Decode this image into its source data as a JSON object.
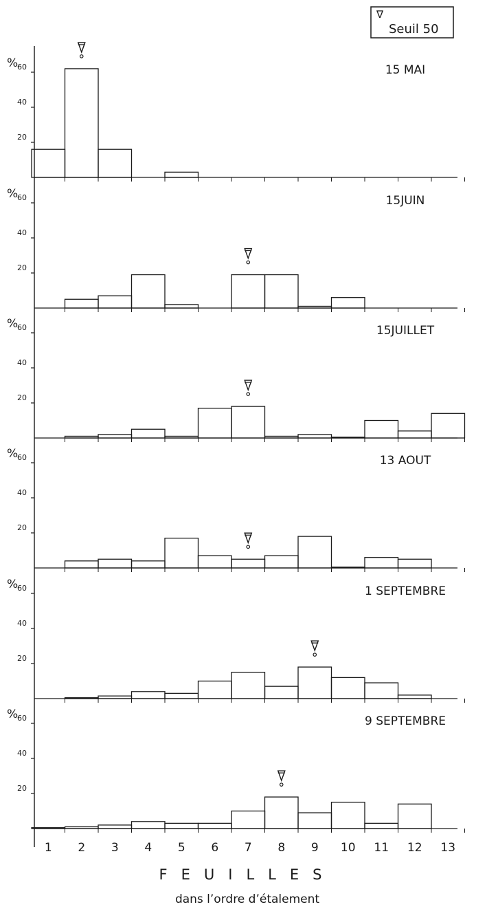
{
  "legend": {
    "symbol": "∇",
    "label": "Seuil 50"
  },
  "yaxis_symbol": "%",
  "xaxis": {
    "label": "FEUILLES",
    "sublabel": "dans l’ordre d’étalement",
    "tick_labels": [
      "1",
      "2",
      "3",
      "4",
      "5",
      "6",
      "7",
      "8",
      "9",
      "10",
      "11",
      "12",
      "13"
    ]
  },
  "chart_data": [
    {
      "type": "bar",
      "title": "15 MAI",
      "ylim": [
        0,
        70
      ],
      "yticks": [
        20,
        40,
        60
      ],
      "categories": [
        1,
        2,
        3,
        4,
        5,
        6,
        7,
        8,
        9,
        10,
        11,
        12,
        13
      ],
      "values": [
        16,
        62,
        16,
        0,
        3,
        0,
        0,
        0,
        0,
        0,
        0,
        0,
        0
      ],
      "threshold_leaf": 2
    },
    {
      "type": "bar",
      "title": "15JUIN",
      "ylim": [
        0,
        70
      ],
      "yticks": [
        20,
        40,
        60
      ],
      "categories": [
        1,
        2,
        3,
        4,
        5,
        6,
        7,
        8,
        9,
        10,
        11,
        12,
        13
      ],
      "values": [
        0,
        5,
        7,
        19,
        2,
        0,
        19,
        19,
        1,
        6,
        0,
        0,
        0
      ],
      "threshold_leaf": 7
    },
    {
      "type": "bar",
      "title": "15JUILLET",
      "ylim": [
        0,
        70
      ],
      "yticks": [
        20,
        40,
        60
      ],
      "categories": [
        1,
        2,
        3,
        4,
        5,
        6,
        7,
        8,
        9,
        10,
        11,
        12,
        13
      ],
      "values": [
        0,
        1,
        2,
        5,
        1,
        17,
        18,
        1,
        2,
        0.5,
        10,
        4,
        14
      ],
      "threshold_leaf": 7
    },
    {
      "type": "bar",
      "title": "13 AOUT",
      "ylim": [
        0,
        70
      ],
      "yticks": [
        20,
        40,
        60
      ],
      "categories": [
        1,
        2,
        3,
        4,
        5,
        6,
        7,
        8,
        9,
        10,
        11,
        12,
        13
      ],
      "values": [
        0,
        4,
        5,
        4,
        17,
        7,
        5,
        7,
        18,
        0.5,
        6,
        5,
        0
      ],
      "threshold_leaf": 7
    },
    {
      "type": "bar",
      "title": "1 SEPTEMBRE",
      "ylim": [
        0,
        70
      ],
      "yticks": [
        20,
        40,
        60
      ],
      "categories": [
        1,
        2,
        3,
        4,
        5,
        6,
        7,
        8,
        9,
        10,
        11,
        12,
        13
      ],
      "values": [
        0,
        0.5,
        1.5,
        4,
        3,
        10,
        15,
        7,
        18,
        12,
        9,
        2,
        0
      ],
      "threshold_leaf": 9
    },
    {
      "type": "bar",
      "title": "9 SEPTEMBRE",
      "ylim": [
        0,
        70
      ],
      "yticks": [
        20,
        40,
        60
      ],
      "categories": [
        1,
        2,
        3,
        4,
        5,
        6,
        7,
        8,
        9,
        10,
        11,
        12,
        13
      ],
      "values": [
        0.5,
        1,
        2,
        4,
        3,
        3,
        10,
        18,
        9,
        15,
        3,
        14,
        0
      ],
      "threshold_leaf": 8
    }
  ]
}
